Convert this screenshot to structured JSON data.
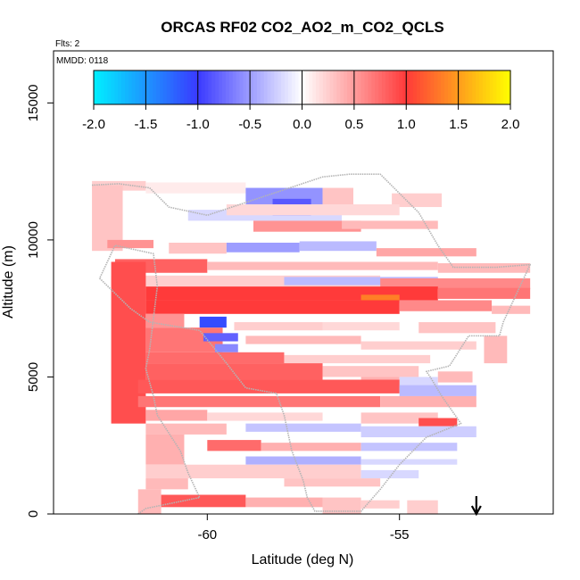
{
  "chart_data": {
    "type": "heatmap",
    "title": "ORCAS RF02 CO2_AO2_m_CO2_QCLS",
    "subtitle": "Flts: 2",
    "annotation": "MMDD: 0118",
    "xlabel": "Latitude (deg N)",
    "ylabel": "Altitude (m)",
    "xlim": [
      -64.0,
      -51.0
    ],
    "ylim": [
      0,
      16900
    ],
    "x_ticks": [
      {
        "value": -60,
        "label": "-60"
      },
      {
        "value": -55,
        "label": "-55"
      }
    ],
    "y_ticks": [
      {
        "value": 0,
        "label": "0"
      },
      {
        "value": 5000,
        "label": "5000"
      },
      {
        "value": 10000,
        "label": "10000"
      },
      {
        "value": 15000,
        "label": "15000"
      }
    ],
    "colorbar": {
      "range": [
        -2.0,
        2.0
      ],
      "tick_labels": [
        "-2.0",
        "-1.5",
        "-1.0",
        "-0.5",
        "0.0",
        "0.5",
        "1.0",
        "1.5",
        "2.0"
      ],
      "colors": [
        "#00f0ff",
        "#3a3aff",
        "#ffffff",
        "#ff3a3a",
        "#ffff00"
      ]
    },
    "marker": {
      "type": "down-arrow",
      "latitude": -53.0
    },
    "cells_note": "Binned values [lat_start, lat_end, alt_bottom_m, alt_top_m, value]",
    "cells": [
      [
        -63.0,
        -61.6,
        11800,
        12150,
        0.25
      ],
      [
        -61.6,
        -59.0,
        11700,
        12100,
        0.1
      ],
      [
        -59.0,
        -57.0,
        11300,
        11900,
        -0.55
      ],
      [
        -57.0,
        -56.2,
        11250,
        11900,
        0.3
      ],
      [
        -55.2,
        -53.9,
        11200,
        11700,
        0.25
      ],
      [
        -60.5,
        -56.5,
        10700,
        11100,
        -0.2
      ],
      [
        -58.3,
        -57.3,
        10900,
        11500,
        -0.85
      ],
      [
        -59.5,
        -55.0,
        10900,
        11300,
        0.2
      ],
      [
        -58.8,
        -56.0,
        10300,
        10700,
        0.55
      ],
      [
        -56.5,
        -54.0,
        10400,
        10700,
        0.35
      ],
      [
        -63.0,
        -62.2,
        9600,
        12000,
        0.3
      ],
      [
        -62.6,
        -61.4,
        9700,
        10000,
        0.55
      ],
      [
        -61.0,
        -59.5,
        9500,
        9900,
        0.3
      ],
      [
        -59.5,
        -57.6,
        9550,
        9900,
        -0.5
      ],
      [
        -57.6,
        -55.6,
        9600,
        9950,
        -0.35
      ],
      [
        -55.6,
        -53.0,
        9400,
        9700,
        0.45
      ],
      [
        -62.4,
        -60.0,
        8800,
        9300,
        0.8
      ],
      [
        -60.0,
        -54.0,
        8900,
        9200,
        0.35
      ],
      [
        -54.0,
        -51.6,
        8800,
        9150,
        0.35
      ],
      [
        -62.5,
        -55.5,
        8300,
        8700,
        0.25
      ],
      [
        -58.0,
        -54.0,
        8350,
        8650,
        -0.35
      ],
      [
        -55.5,
        -51.6,
        8200,
        8600,
        0.6
      ],
      [
        -61.6,
        -54.0,
        7800,
        8300,
        1.0
      ],
      [
        -56.0,
        -55.0,
        7700,
        8000,
        1.35
      ],
      [
        -54.0,
        -51.6,
        7850,
        8250,
        0.7
      ],
      [
        -61.6,
        -55.0,
        7300,
        7800,
        1.0
      ],
      [
        -55.0,
        -52.6,
        7400,
        7800,
        0.6
      ],
      [
        -52.6,
        -51.6,
        7300,
        7600,
        0.35
      ],
      [
        -62.5,
        -61.6,
        3300,
        9200,
        0.9
      ],
      [
        -61.6,
        -60.6,
        6800,
        7300,
        0.55
      ],
      [
        -60.2,
        -59.5,
        6800,
        7200,
        -1.1
      ],
      [
        -59.3,
        -57.0,
        6700,
        7000,
        0.25
      ],
      [
        -57.0,
        -55.0,
        6700,
        7000,
        0.2
      ],
      [
        -54.5,
        -52.5,
        6600,
        7000,
        0.3
      ],
      [
        -61.6,
        -59.6,
        5900,
        6800,
        0.7
      ],
      [
        -60.1,
        -59.2,
        6300,
        6600,
        -0.8
      ],
      [
        -59.8,
        -59.2,
        5900,
        6200,
        -0.6
      ],
      [
        -59.0,
        -56.0,
        6200,
        6500,
        0.35
      ],
      [
        -56.0,
        -53.0,
        6000,
        6300,
        0.25
      ],
      [
        -52.8,
        -52.2,
        5500,
        6500,
        0.35
      ],
      [
        -61.6,
        -58.0,
        5500,
        5900,
        0.75
      ],
      [
        -58.0,
        -54.2,
        5500,
        5800,
        0.25
      ],
      [
        -61.6,
        -57.0,
        4900,
        5500,
        0.8
      ],
      [
        -57.0,
        -54.5,
        5000,
        5400,
        0.3
      ],
      [
        -56.0,
        -55.0,
        4700,
        5000,
        0.4
      ],
      [
        -55.0,
        -54.0,
        4600,
        5000,
        -0.2
      ],
      [
        -54.0,
        -53.1,
        4800,
        5200,
        0.35
      ],
      [
        -61.8,
        -55.0,
        4400,
        4900,
        0.85
      ],
      [
        -55.0,
        -53.0,
        4300,
        4700,
        -0.35
      ],
      [
        -61.8,
        -55.5,
        3900,
        4300,
        0.7
      ],
      [
        -55.5,
        -53.0,
        3900,
        4300,
        0.4
      ],
      [
        -61.6,
        -60.0,
        3400,
        3800,
        0.45
      ],
      [
        -60.0,
        -57.0,
        3400,
        3700,
        0.2
      ],
      [
        -56.0,
        -54.0,
        3300,
        3700,
        0.3
      ],
      [
        -54.5,
        -53.5,
        3200,
        3500,
        0.9
      ],
      [
        -61.6,
        -59.5,
        2900,
        3300,
        0.35
      ],
      [
        -59.0,
        -56.0,
        3000,
        3300,
        -0.3
      ],
      [
        -56.0,
        -53.0,
        2800,
        3200,
        -0.25
      ],
      [
        -61.6,
        -60.6,
        1800,
        2900,
        0.4
      ],
      [
        -60.0,
        -58.6,
        2300,
        2700,
        0.75
      ],
      [
        -58.6,
        -56.0,
        2300,
        2600,
        0.4
      ],
      [
        -56.0,
        -53.5,
        2300,
        2600,
        -0.3
      ],
      [
        -59.0,
        -56.0,
        1800,
        2100,
        -0.4
      ],
      [
        -56.0,
        -53.5,
        1800,
        2000,
        -0.2
      ],
      [
        -61.6,
        -56.0,
        1300,
        1800,
        0.25
      ],
      [
        -56.0,
        -54.5,
        1300,
        1600,
        -0.2
      ],
      [
        -61.6,
        -60.5,
        900,
        1300,
        0.35
      ],
      [
        -58.0,
        -55.5,
        1000,
        1300,
        0.3
      ],
      [
        -61.8,
        -61.2,
        0,
        900,
        0.35
      ],
      [
        -61.2,
        -59.0,
        250,
        700,
        0.85
      ],
      [
        -59.0,
        -57.0,
        250,
        600,
        0.4
      ],
      [
        -57.0,
        -56.0,
        0,
        600,
        0.3
      ],
      [
        -56.0,
        -55.0,
        200,
        500,
        0.25
      ],
      [
        -54.8,
        -54.0,
        0,
        500,
        0.25
      ]
    ],
    "flight_track": [
      [
        -63.0,
        12000
      ],
      [
        -62.3,
        12050
      ],
      [
        -61.5,
        11900
      ],
      [
        -61.0,
        11200
      ],
      [
        -60.0,
        10900
      ],
      [
        -58.5,
        11600
      ],
      [
        -57.0,
        12300
      ],
      [
        -56.3,
        12400
      ],
      [
        -55.5,
        12400
      ],
      [
        -54.5,
        11000
      ],
      [
        -54.0,
        9800
      ],
      [
        -53.6,
        9000
      ],
      [
        -52.5,
        9000
      ],
      [
        -51.6,
        9100
      ],
      [
        -52.3,
        7000
      ],
      [
        -52.4,
        6500
      ],
      [
        -53.2,
        6500
      ],
      [
        -53.7,
        5400
      ],
      [
        -54.3,
        5200
      ],
      [
        -54.2,
        5000
      ],
      [
        -53.9,
        4300
      ],
      [
        -53.4,
        3300
      ],
      [
        -54.3,
        2800
      ],
      [
        -55.0,
        1800
      ],
      [
        -55.5,
        900
      ],
      [
        -56.0,
        100
      ],
      [
        -57.2,
        100
      ],
      [
        -57.4,
        600
      ],
      [
        -57.5,
        1200
      ],
      [
        -57.8,
        2300
      ],
      [
        -58.0,
        3600
      ],
      [
        -58.2,
        4400
      ],
      [
        -59.0,
        4600
      ],
      [
        -59.5,
        5500
      ],
      [
        -60.2,
        6700
      ],
      [
        -61.5,
        7000
      ],
      [
        -62.0,
        7500
      ],
      [
        -62.8,
        8600
      ],
      [
        -62.4,
        9800
      ],
      [
        -61.4,
        9500
      ],
      [
        -61.3,
        8300
      ],
      [
        -61.5,
        6000
      ],
      [
        -61.6,
        5300
      ],
      [
        -61.4,
        4300
      ],
      [
        -61.3,
        3600
      ],
      [
        -60.7,
        2300
      ],
      [
        -60.5,
        1500
      ],
      [
        -60.2,
        600
      ],
      [
        -61.6,
        200
      ],
      [
        -61.8,
        0
      ]
    ]
  }
}
